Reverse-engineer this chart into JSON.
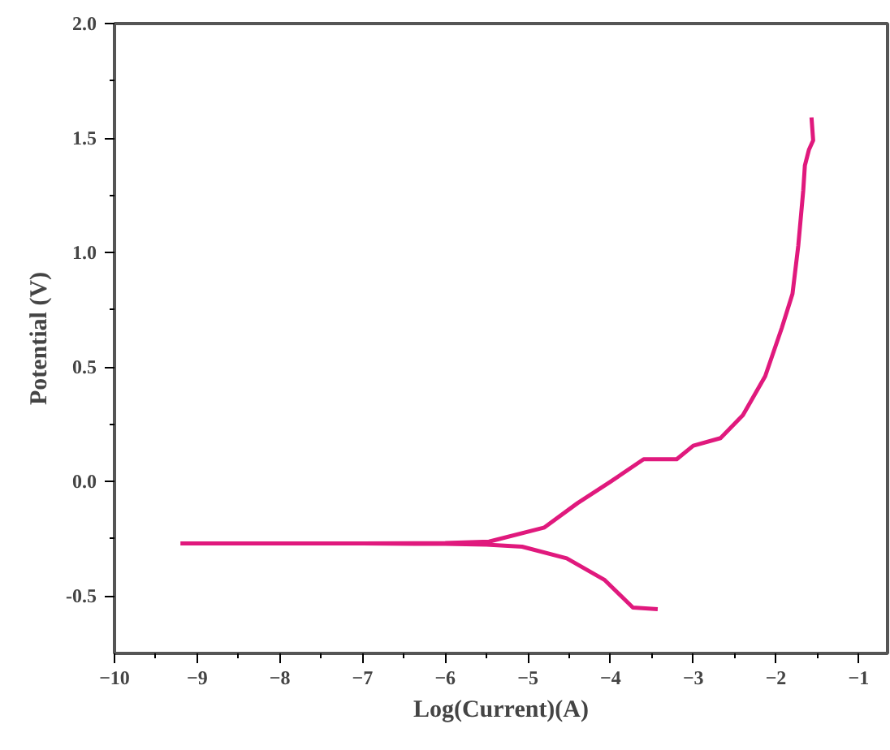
{
  "chart_data": {
    "type": "line",
    "xlabel": "Log(Current)(A)",
    "ylabel": "Potential (V)",
    "xlim": [
      -10,
      -0.65
    ],
    "ylim": [
      -0.75,
      2.0
    ],
    "xticks": [
      -10,
      -9,
      -8,
      -7,
      -6,
      -5,
      -4,
      -3,
      -2,
      -1
    ],
    "yticks": [
      {
        "value": -0.5,
        "label": "-0.5"
      },
      {
        "value": 0,
        "label": "0.0"
      },
      {
        "value": 0.5,
        "label": "0.5"
      },
      {
        "value": 1.0,
        "label": "1.0"
      },
      {
        "value": 1.5,
        "label": "1.5"
      },
      {
        "value": 2.0,
        "label": "2.0"
      }
    ],
    "grid": false,
    "marker": "none",
    "line_style": "solid",
    "series": [
      {
        "color": "#e0197d",
        "x": [
          -3.43,
          -3.73,
          -4.07,
          -4.53,
          -5.07,
          -5.5,
          -6.0,
          -7.0,
          -8.0,
          -9.2
        ],
        "values": [
          -0.557,
          -0.55,
          -0.43,
          -0.335,
          -0.284,
          -0.275,
          -0.272,
          -0.27,
          -0.27,
          -0.27
        ]
      },
      {
        "color": "#e0197d",
        "x": [
          -9.2,
          -8.0,
          -7.0,
          -6.0,
          -5.47,
          -4.8,
          -4.4,
          -4.0,
          -3.6,
          -3.2,
          -3.0,
          -2.67,
          -2.4,
          -2.13,
          -1.93,
          -1.8,
          -1.73,
          -1.67,
          -1.65,
          -1.6,
          -1.55,
          -1.57
        ],
        "values": [
          -0.27,
          -0.27,
          -0.27,
          -0.268,
          -0.262,
          -0.2,
          -0.094,
          0.0,
          0.098,
          0.098,
          0.157,
          0.19,
          0.29,
          0.46,
          0.67,
          0.82,
          1.03,
          1.27,
          1.38,
          1.45,
          1.49,
          1.59
        ]
      }
    ]
  }
}
